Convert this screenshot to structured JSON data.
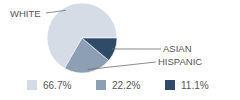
{
  "chart_data": {
    "type": "pie",
    "categories": [
      "WHITE",
      "HISPANIC",
      "ASIAN"
    ],
    "values": [
      66.7,
      22.2,
      11.1
    ],
    "value_labels": [
      "66.7%",
      "22.2%",
      "11.1%"
    ],
    "colors": [
      "#d5dce5",
      "#8c9fb5",
      "#2f4b68"
    ]
  }
}
